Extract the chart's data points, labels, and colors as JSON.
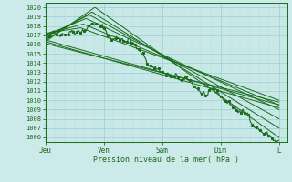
{
  "xlabel": "Pression niveau de la mer( hPa )",
  "ylim": [
    1005.5,
    1020.5
  ],
  "yticks": [
    1006,
    1007,
    1008,
    1009,
    1010,
    1011,
    1012,
    1013,
    1014,
    1015,
    1016,
    1017,
    1018,
    1019,
    1020
  ],
  "xtick_labels": [
    "Jeu",
    "Ven",
    "Sam",
    "Dim",
    "L"
  ],
  "bg_color": "#cceaea",
  "grid_major_color": "#99cccc",
  "grid_minor_color": "#bbdddd",
  "line_color": "#1a6b1a",
  "line_width": 0.7
}
